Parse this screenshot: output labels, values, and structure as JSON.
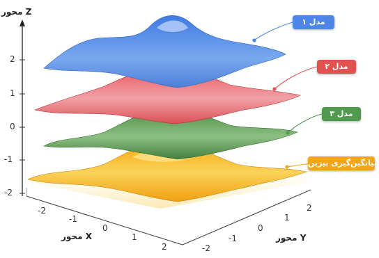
{
  "axes": {
    "z_label": "محور Z",
    "x_label": "محور X",
    "y_label": "محور Y",
    "z_ticks": [
      "2",
      "1",
      "0",
      "-1",
      "-2"
    ],
    "x_ticks": [
      "-2",
      "-1",
      "0",
      "1",
      "2"
    ],
    "y_ticks": [
      "2",
      "1",
      "0",
      "-1",
      "-2"
    ]
  },
  "legend": {
    "model1": {
      "label": "مدل ۱",
      "color": "#4d86e6"
    },
    "model2": {
      "label": "مدل ۲",
      "color": "#e0514f"
    },
    "model3": {
      "label": "مدل ۳",
      "color": "#4f9a4d"
    },
    "average": {
      "label": "میانگین‌گیری بیزین",
      "color": "#f0a51a"
    }
  },
  "surfaces": {
    "model1_color": "#5a8de0",
    "model2_color": "#e06a70",
    "model3_color": "#5f9a57",
    "average_color": "#f3b21f"
  }
}
